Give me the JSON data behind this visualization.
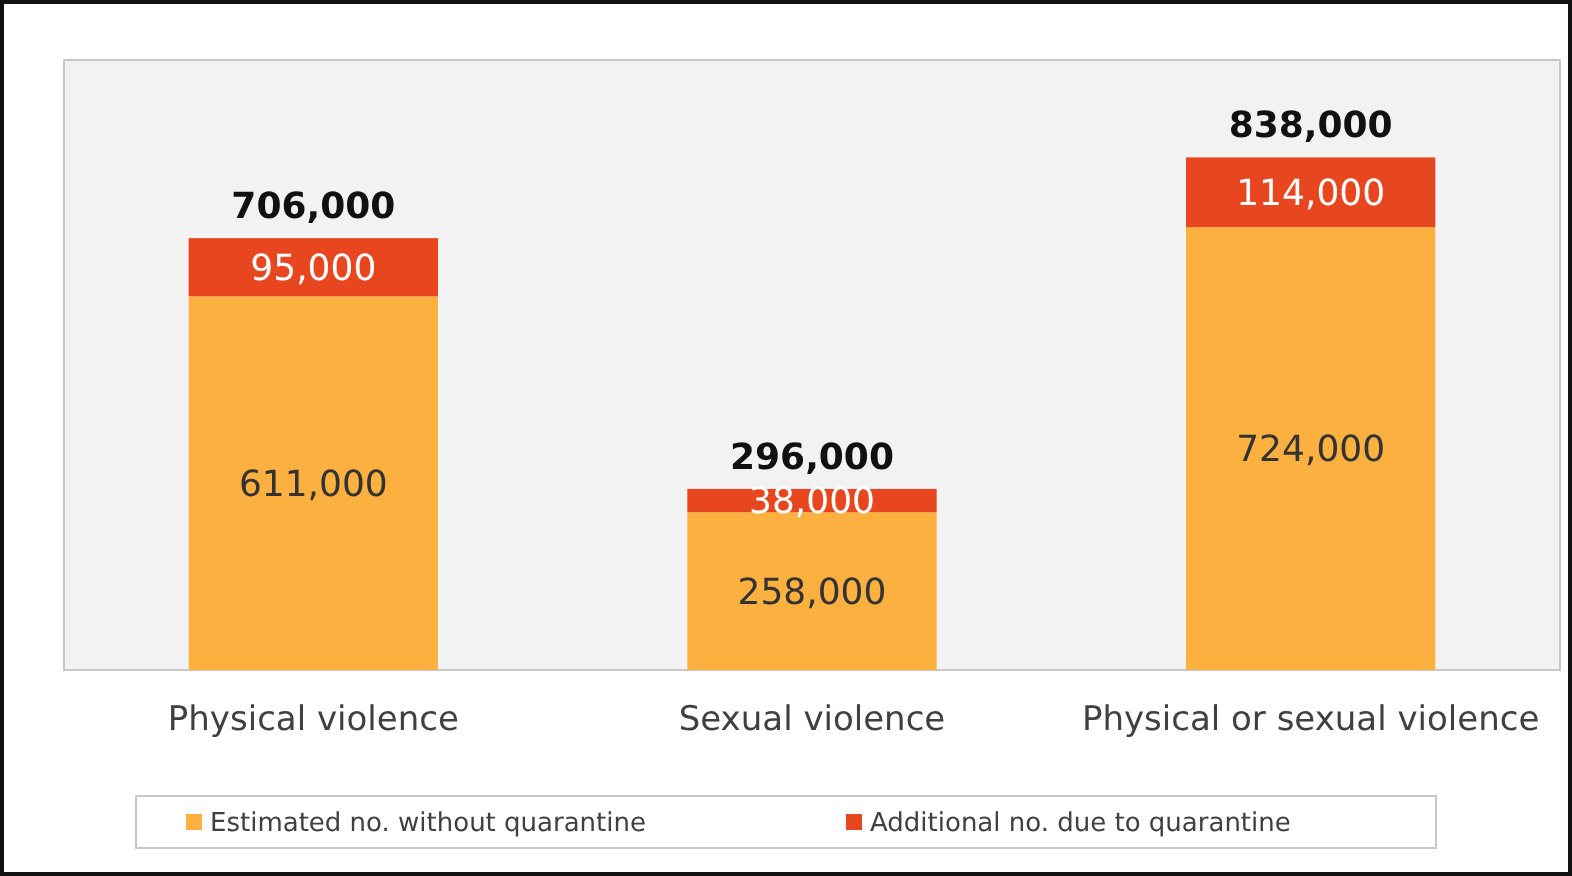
{
  "chart_data": {
    "type": "bar",
    "stacked": true,
    "categories": [
      "Physical violence",
      "Sexual violence",
      "Physical or sexual violence"
    ],
    "series": [
      {
        "name": "Estimated no. without quarantine",
        "color": "#fbb040",
        "values": [
          611000,
          258000,
          724000
        ],
        "value_labels": [
          "611,000",
          "258,000",
          "724,000"
        ]
      },
      {
        "name": "Additional no. due to quarantine",
        "color": "#e8461e",
        "values": [
          95000,
          38000,
          114000
        ],
        "value_labels": [
          "95,000",
          "38,000",
          "114,000"
        ]
      }
    ],
    "totals": [
      "706,000",
      "296,000",
      "838,000"
    ],
    "legend": "bottom"
  }
}
